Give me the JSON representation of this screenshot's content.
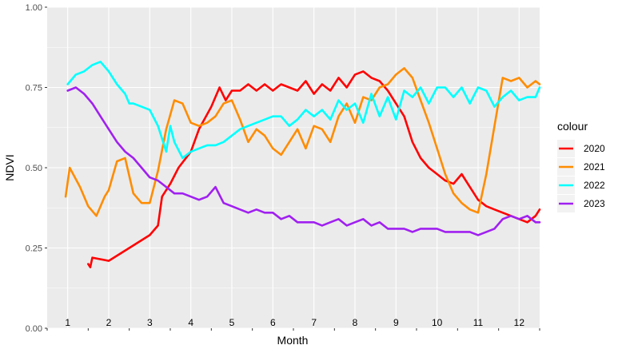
{
  "chart_data": {
    "type": "line",
    "xlabel": "Month",
    "ylabel": "NDVI",
    "ylim": [
      0,
      1
    ],
    "y_ticks": [
      "0.00",
      "0.25",
      "0.50",
      "0.75",
      "1.00"
    ],
    "x_categories": [
      "1",
      "2",
      "3",
      "4",
      "5",
      "6",
      "7",
      "8",
      "9",
      "10",
      "11",
      "12"
    ],
    "grid": true,
    "legend_title": "colour",
    "legend_position": "right",
    "series": [
      {
        "name": "2020",
        "color": "#ff0000",
        "x": [
          1.5,
          1.55,
          1.6,
          2,
          2.5,
          3,
          3.2,
          3.3,
          3.5,
          3.7,
          4,
          4.2,
          4.5,
          4.7,
          4.85,
          5,
          5.2,
          5.4,
          5.6,
          5.8,
          6,
          6.2,
          6.4,
          6.6,
          6.8,
          7,
          7.2,
          7.4,
          7.6,
          7.8,
          8,
          8.2,
          8.4,
          8.6,
          8.8,
          9,
          9.2,
          9.4,
          9.6,
          9.8,
          10,
          10.2,
          10.4,
          10.6,
          10.8,
          11,
          11.2,
          11.4,
          11.6,
          11.8,
          12,
          12.2,
          12.4,
          12.5
        ],
        "y": [
          0.2,
          0.19,
          0.22,
          0.21,
          0.25,
          0.29,
          0.32,
          0.41,
          0.45,
          0.5,
          0.55,
          0.62,
          0.69,
          0.75,
          0.71,
          0.74,
          0.74,
          0.76,
          0.74,
          0.76,
          0.74,
          0.76,
          0.75,
          0.74,
          0.77,
          0.73,
          0.76,
          0.74,
          0.78,
          0.75,
          0.79,
          0.8,
          0.78,
          0.77,
          0.74,
          0.7,
          0.66,
          0.58,
          0.53,
          0.5,
          0.48,
          0.46,
          0.45,
          0.48,
          0.44,
          0.4,
          0.38,
          0.37,
          0.36,
          0.35,
          0.34,
          0.33,
          0.35,
          0.37
        ]
      },
      {
        "name": "2021",
        "color": "#ff8c00",
        "x": [
          0.95,
          1.05,
          1.3,
          1.5,
          1.7,
          1.9,
          2,
          2.2,
          2.4,
          2.6,
          2.8,
          3,
          3.2,
          3.4,
          3.6,
          3.8,
          4,
          4.2,
          4.4,
          4.6,
          4.8,
          5,
          5.2,
          5.4,
          5.6,
          5.8,
          6,
          6.2,
          6.4,
          6.6,
          6.8,
          7,
          7.2,
          7.4,
          7.6,
          7.8,
          8,
          8.2,
          8.4,
          8.6,
          8.8,
          9,
          9.2,
          9.4,
          9.6,
          9.8,
          10,
          10.2,
          10.4,
          10.6,
          10.8,
          11,
          11.2,
          11.4,
          11.6,
          11.8,
          12,
          12.2,
          12.4,
          12.5
        ],
        "y": [
          0.41,
          0.5,
          0.44,
          0.38,
          0.35,
          0.41,
          0.43,
          0.52,
          0.53,
          0.42,
          0.39,
          0.39,
          0.49,
          0.62,
          0.71,
          0.7,
          0.64,
          0.63,
          0.64,
          0.66,
          0.7,
          0.71,
          0.65,
          0.58,
          0.62,
          0.6,
          0.56,
          0.54,
          0.58,
          0.62,
          0.56,
          0.63,
          0.62,
          0.58,
          0.66,
          0.7,
          0.64,
          0.72,
          0.71,
          0.75,
          0.76,
          0.79,
          0.81,
          0.78,
          0.71,
          0.64,
          0.56,
          0.48,
          0.42,
          0.39,
          0.37,
          0.36,
          0.48,
          0.63,
          0.78,
          0.77,
          0.78,
          0.75,
          0.77,
          0.76
        ]
      },
      {
        "name": "2022",
        "color": "#00ffff",
        "x": [
          1,
          1.2,
          1.4,
          1.6,
          1.8,
          2,
          2.2,
          2.4,
          2.5,
          2.6,
          2.8,
          3,
          3.2,
          3.4,
          3.5,
          3.6,
          3.8,
          4,
          4.2,
          4.4,
          4.6,
          4.8,
          5,
          5.2,
          5.4,
          5.6,
          5.8,
          6,
          6.2,
          6.4,
          6.6,
          6.8,
          7,
          7.2,
          7.4,
          7.6,
          7.8,
          8,
          8.2,
          8.4,
          8.6,
          8.8,
          9,
          9.2,
          9.4,
          9.6,
          9.8,
          10,
          10.2,
          10.4,
          10.6,
          10.8,
          11,
          11.2,
          11.4,
          11.6,
          11.8,
          12,
          12.2,
          12.4,
          12.5
        ],
        "y": [
          0.76,
          0.79,
          0.8,
          0.82,
          0.83,
          0.8,
          0.76,
          0.73,
          0.7,
          0.7,
          0.69,
          0.68,
          0.63,
          0.55,
          0.63,
          0.58,
          0.53,
          0.55,
          0.56,
          0.57,
          0.57,
          0.58,
          0.6,
          0.62,
          0.63,
          0.64,
          0.65,
          0.66,
          0.66,
          0.63,
          0.65,
          0.68,
          0.66,
          0.68,
          0.65,
          0.71,
          0.68,
          0.7,
          0.64,
          0.73,
          0.66,
          0.72,
          0.65,
          0.74,
          0.72,
          0.75,
          0.7,
          0.75,
          0.75,
          0.72,
          0.75,
          0.7,
          0.75,
          0.74,
          0.69,
          0.72,
          0.74,
          0.71,
          0.72,
          0.72,
          0.75
        ]
      },
      {
        "name": "2023",
        "color": "#a020f0",
        "x": [
          1,
          1.2,
          1.4,
          1.6,
          1.8,
          2,
          2.2,
          2.4,
          2.6,
          2.8,
          3,
          3.2,
          3.4,
          3.6,
          3.8,
          4,
          4.2,
          4.4,
          4.6,
          4.8,
          5,
          5.2,
          5.4,
          5.6,
          5.8,
          6,
          6.2,
          6.4,
          6.6,
          6.8,
          7,
          7.2,
          7.4,
          7.6,
          7.8,
          8,
          8.2,
          8.4,
          8.6,
          8.8,
          9,
          9.2,
          9.4,
          9.6,
          9.8,
          10,
          10.2,
          10.4,
          10.6,
          10.8,
          11,
          11.2,
          11.4,
          11.6,
          11.8,
          12,
          12.2,
          12.4,
          12.5
        ],
        "y": [
          0.74,
          0.75,
          0.73,
          0.7,
          0.66,
          0.62,
          0.58,
          0.55,
          0.53,
          0.5,
          0.47,
          0.46,
          0.44,
          0.42,
          0.42,
          0.41,
          0.4,
          0.41,
          0.44,
          0.39,
          0.38,
          0.37,
          0.36,
          0.37,
          0.36,
          0.36,
          0.34,
          0.35,
          0.33,
          0.33,
          0.33,
          0.32,
          0.33,
          0.34,
          0.32,
          0.33,
          0.34,
          0.32,
          0.33,
          0.31,
          0.31,
          0.31,
          0.3,
          0.31,
          0.31,
          0.31,
          0.3,
          0.3,
          0.3,
          0.3,
          0.29,
          0.3,
          0.31,
          0.34,
          0.35,
          0.34,
          0.35,
          0.33,
          0.33
        ]
      }
    ]
  }
}
